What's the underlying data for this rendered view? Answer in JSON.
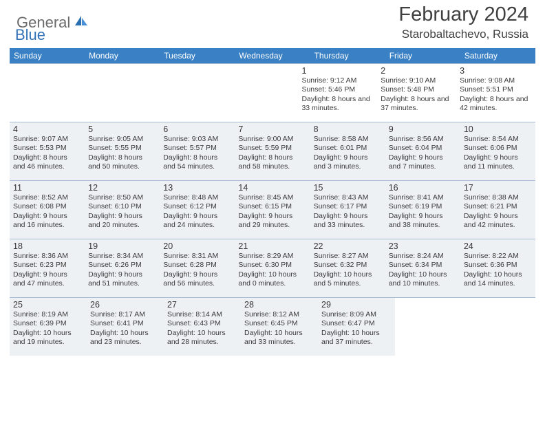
{
  "logo": {
    "general": "General",
    "blue": "Blue"
  },
  "title": "February 2024",
  "location": "Starobaltachevo, Russia",
  "headers": [
    "Sunday",
    "Monday",
    "Tuesday",
    "Wednesday",
    "Thursday",
    "Friday",
    "Saturday"
  ],
  "weeks": [
    [
      {
        "empty": true,
        "shaded": false
      },
      {
        "empty": true,
        "shaded": false
      },
      {
        "empty": true,
        "shaded": false
      },
      {
        "empty": true,
        "shaded": false
      },
      {
        "num": "1",
        "sunrise": "Sunrise: 9:12 AM",
        "sunset": "Sunset: 5:46 PM",
        "daylight": "Daylight: 8 hours and 33 minutes.",
        "shaded": false
      },
      {
        "num": "2",
        "sunrise": "Sunrise: 9:10 AM",
        "sunset": "Sunset: 5:48 PM",
        "daylight": "Daylight: 8 hours and 37 minutes.",
        "shaded": false
      },
      {
        "num": "3",
        "sunrise": "Sunrise: 9:08 AM",
        "sunset": "Sunset: 5:51 PM",
        "daylight": "Daylight: 8 hours and 42 minutes.",
        "shaded": false
      }
    ],
    [
      {
        "num": "4",
        "sunrise": "Sunrise: 9:07 AM",
        "sunset": "Sunset: 5:53 PM",
        "daylight": "Daylight: 8 hours and 46 minutes.",
        "shaded": true
      },
      {
        "num": "5",
        "sunrise": "Sunrise: 9:05 AM",
        "sunset": "Sunset: 5:55 PM",
        "daylight": "Daylight: 8 hours and 50 minutes.",
        "shaded": true
      },
      {
        "num": "6",
        "sunrise": "Sunrise: 9:03 AM",
        "sunset": "Sunset: 5:57 PM",
        "daylight": "Daylight: 8 hours and 54 minutes.",
        "shaded": true
      },
      {
        "num": "7",
        "sunrise": "Sunrise: 9:00 AM",
        "sunset": "Sunset: 5:59 PM",
        "daylight": "Daylight: 8 hours and 58 minutes.",
        "shaded": true
      },
      {
        "num": "8",
        "sunrise": "Sunrise: 8:58 AM",
        "sunset": "Sunset: 6:01 PM",
        "daylight": "Daylight: 9 hours and 3 minutes.",
        "shaded": true
      },
      {
        "num": "9",
        "sunrise": "Sunrise: 8:56 AM",
        "sunset": "Sunset: 6:04 PM",
        "daylight": "Daylight: 9 hours and 7 minutes.",
        "shaded": true
      },
      {
        "num": "10",
        "sunrise": "Sunrise: 8:54 AM",
        "sunset": "Sunset: 6:06 PM",
        "daylight": "Daylight: 9 hours and 11 minutes.",
        "shaded": true
      }
    ],
    [
      {
        "num": "11",
        "sunrise": "Sunrise: 8:52 AM",
        "sunset": "Sunset: 6:08 PM",
        "daylight": "Daylight: 9 hours and 16 minutes.",
        "shaded": true
      },
      {
        "num": "12",
        "sunrise": "Sunrise: 8:50 AM",
        "sunset": "Sunset: 6:10 PM",
        "daylight": "Daylight: 9 hours and 20 minutes.",
        "shaded": true
      },
      {
        "num": "13",
        "sunrise": "Sunrise: 8:48 AM",
        "sunset": "Sunset: 6:12 PM",
        "daylight": "Daylight: 9 hours and 24 minutes.",
        "shaded": true
      },
      {
        "num": "14",
        "sunrise": "Sunrise: 8:45 AM",
        "sunset": "Sunset: 6:15 PM",
        "daylight": "Daylight: 9 hours and 29 minutes.",
        "shaded": true
      },
      {
        "num": "15",
        "sunrise": "Sunrise: 8:43 AM",
        "sunset": "Sunset: 6:17 PM",
        "daylight": "Daylight: 9 hours and 33 minutes.",
        "shaded": true
      },
      {
        "num": "16",
        "sunrise": "Sunrise: 8:41 AM",
        "sunset": "Sunset: 6:19 PM",
        "daylight": "Daylight: 9 hours and 38 minutes.",
        "shaded": true
      },
      {
        "num": "17",
        "sunrise": "Sunrise: 8:38 AM",
        "sunset": "Sunset: 6:21 PM",
        "daylight": "Daylight: 9 hours and 42 minutes.",
        "shaded": true
      }
    ],
    [
      {
        "num": "18",
        "sunrise": "Sunrise: 8:36 AM",
        "sunset": "Sunset: 6:23 PM",
        "daylight": "Daylight: 9 hours and 47 minutes.",
        "shaded": true
      },
      {
        "num": "19",
        "sunrise": "Sunrise: 8:34 AM",
        "sunset": "Sunset: 6:26 PM",
        "daylight": "Daylight: 9 hours and 51 minutes.",
        "shaded": true
      },
      {
        "num": "20",
        "sunrise": "Sunrise: 8:31 AM",
        "sunset": "Sunset: 6:28 PM",
        "daylight": "Daylight: 9 hours and 56 minutes.",
        "shaded": true
      },
      {
        "num": "21",
        "sunrise": "Sunrise: 8:29 AM",
        "sunset": "Sunset: 6:30 PM",
        "daylight": "Daylight: 10 hours and 0 minutes.",
        "shaded": true
      },
      {
        "num": "22",
        "sunrise": "Sunrise: 8:27 AM",
        "sunset": "Sunset: 6:32 PM",
        "daylight": "Daylight: 10 hours and 5 minutes.",
        "shaded": true
      },
      {
        "num": "23",
        "sunrise": "Sunrise: 8:24 AM",
        "sunset": "Sunset: 6:34 PM",
        "daylight": "Daylight: 10 hours and 10 minutes.",
        "shaded": true
      },
      {
        "num": "24",
        "sunrise": "Sunrise: 8:22 AM",
        "sunset": "Sunset: 6:36 PM",
        "daylight": "Daylight: 10 hours and 14 minutes.",
        "shaded": true
      }
    ],
    [
      {
        "num": "25",
        "sunrise": "Sunrise: 8:19 AM",
        "sunset": "Sunset: 6:39 PM",
        "daylight": "Daylight: 10 hours and 19 minutes.",
        "shaded": true
      },
      {
        "num": "26",
        "sunrise": "Sunrise: 8:17 AM",
        "sunset": "Sunset: 6:41 PM",
        "daylight": "Daylight: 10 hours and 23 minutes.",
        "shaded": true
      },
      {
        "num": "27",
        "sunrise": "Sunrise: 8:14 AM",
        "sunset": "Sunset: 6:43 PM",
        "daylight": "Daylight: 10 hours and 28 minutes.",
        "shaded": true
      },
      {
        "num": "28",
        "sunrise": "Sunrise: 8:12 AM",
        "sunset": "Sunset: 6:45 PM",
        "daylight": "Daylight: 10 hours and 33 minutes.",
        "shaded": true
      },
      {
        "num": "29",
        "sunrise": "Sunrise: 8:09 AM",
        "sunset": "Sunset: 6:47 PM",
        "daylight": "Daylight: 10 hours and 37 minutes.",
        "shaded": true
      },
      {
        "empty": true,
        "shaded": false
      },
      {
        "empty": true,
        "shaded": false
      }
    ]
  ],
  "colors": {
    "header_bg": "#3a80c4",
    "shaded_bg": "#eef1f4",
    "border": "#a9bdd6",
    "logo_blue": "#3273b8"
  }
}
